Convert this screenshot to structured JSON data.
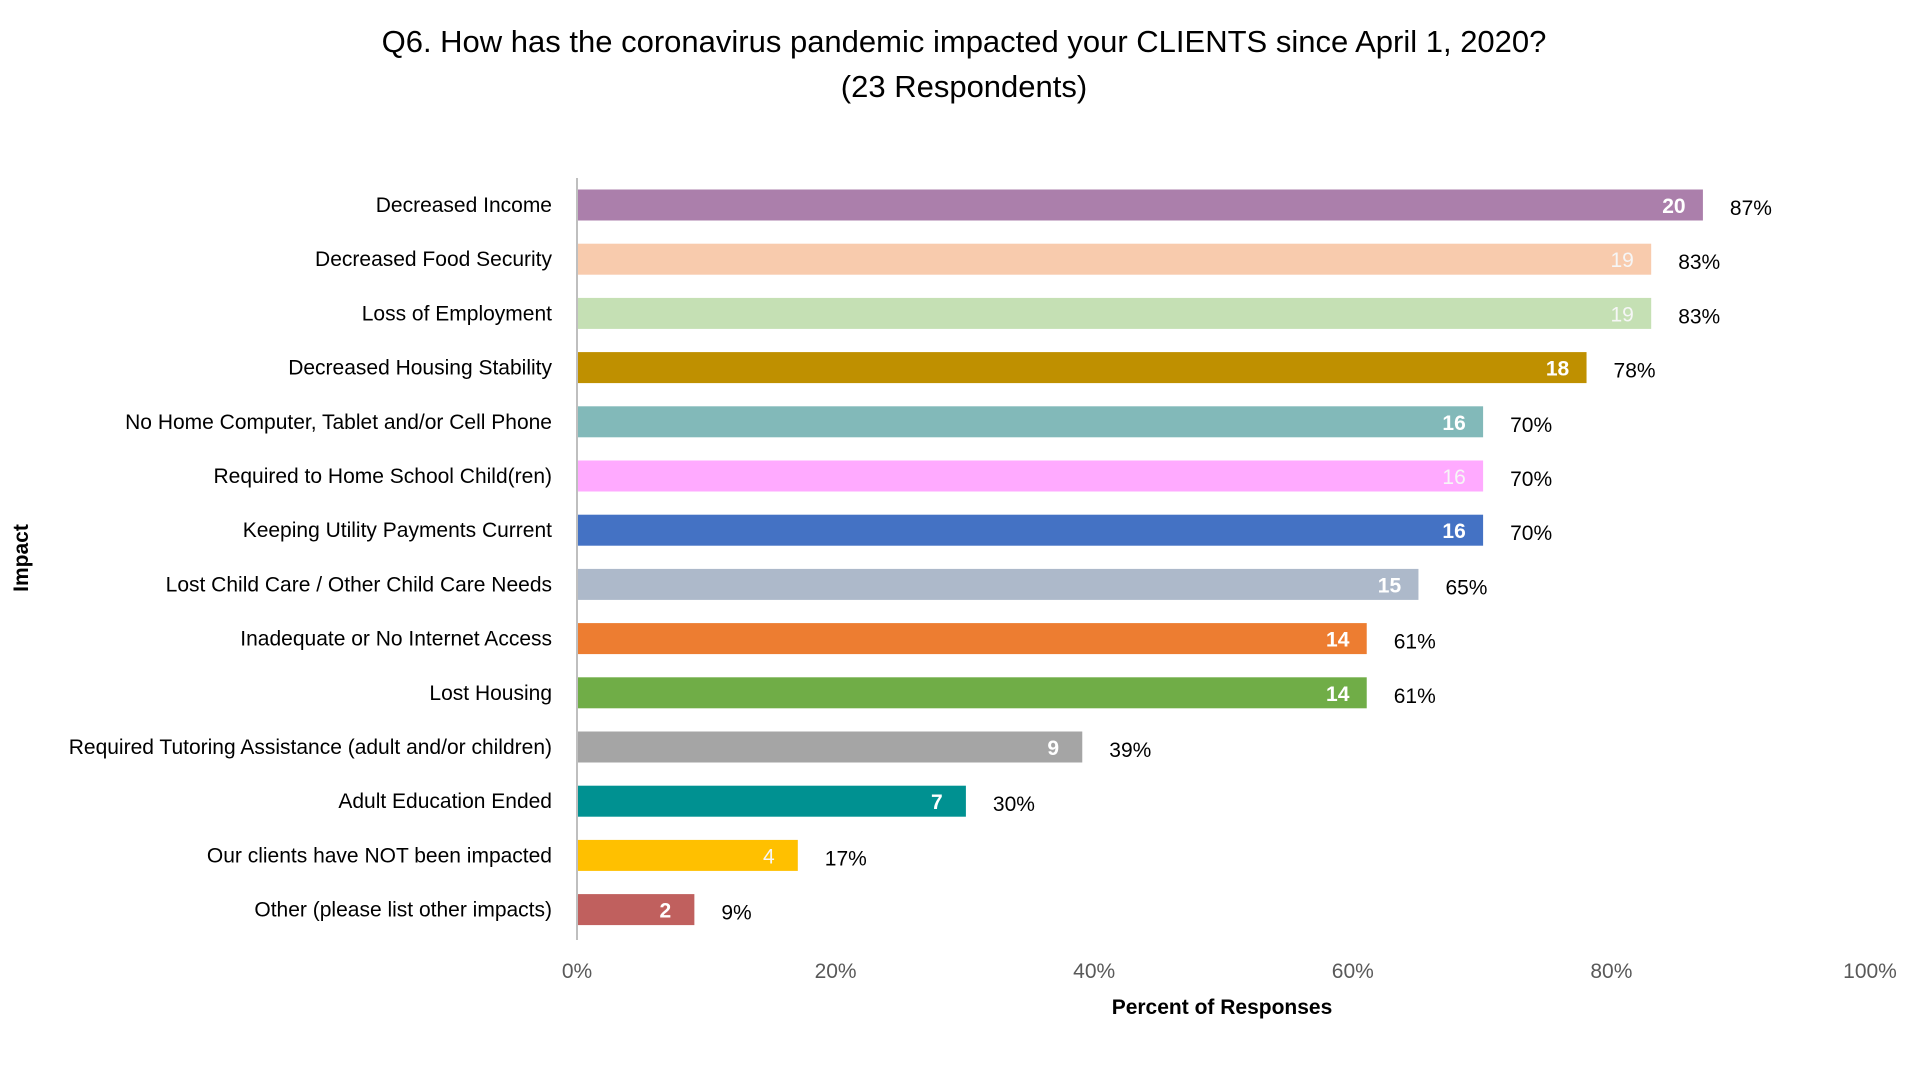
{
  "chart_data": {
    "type": "bar",
    "orientation": "horizontal",
    "title_line1": "Q6. How has the coronavirus pandemic impacted your CLIENTS since April 1, 2020?",
    "title_line2": "(23 Respondents)",
    "xlabel": "Percent of Responses",
    "ylabel": "Impact",
    "xlim": [
      0,
      100
    ],
    "xticks": [
      "0%",
      "20%",
      "40%",
      "60%",
      "80%",
      "100%"
    ],
    "grid": false,
    "legend": "none",
    "categories": [
      "Decreased Income",
      "Decreased Food Security",
      "Loss of Employment",
      "Decreased Housing Stability",
      "No Home Computer, Tablet and/or Cell Phone",
      "Required to Home School Child(ren)",
      "Keeping Utility Payments Current",
      "Lost Child Care / Other Child Care Needs",
      "Inadequate or No Internet Access",
      "Lost Housing",
      "Required Tutoring Assistance (adult and/or children)",
      "Adult Education Ended",
      "Our clients have NOT been impacted",
      "Other (please list other impacts)"
    ],
    "counts": [
      20,
      19,
      19,
      18,
      16,
      16,
      16,
      15,
      14,
      14,
      9,
      7,
      4,
      2
    ],
    "percent_labels": [
      "87%",
      "83%",
      "83%",
      "78%",
      "70%",
      "70%",
      "70%",
      "65%",
      "61%",
      "61%",
      "39%",
      "30%",
      "17%",
      "9%"
    ],
    "values": [
      87,
      83,
      83,
      78,
      70,
      70,
      70,
      65,
      61,
      61,
      39,
      30,
      17,
      9
    ],
    "colors": [
      "#ab7fab",
      "#f8cbad",
      "#c5e0b4",
      "#bf9000",
      "#82b9b9",
      "#ffaaff",
      "#4472c4",
      "#adb9ca",
      "#ed7d31",
      "#70ad47",
      "#a5a5a5",
      "#009191",
      "#ffc000",
      "#c0605e"
    ]
  }
}
